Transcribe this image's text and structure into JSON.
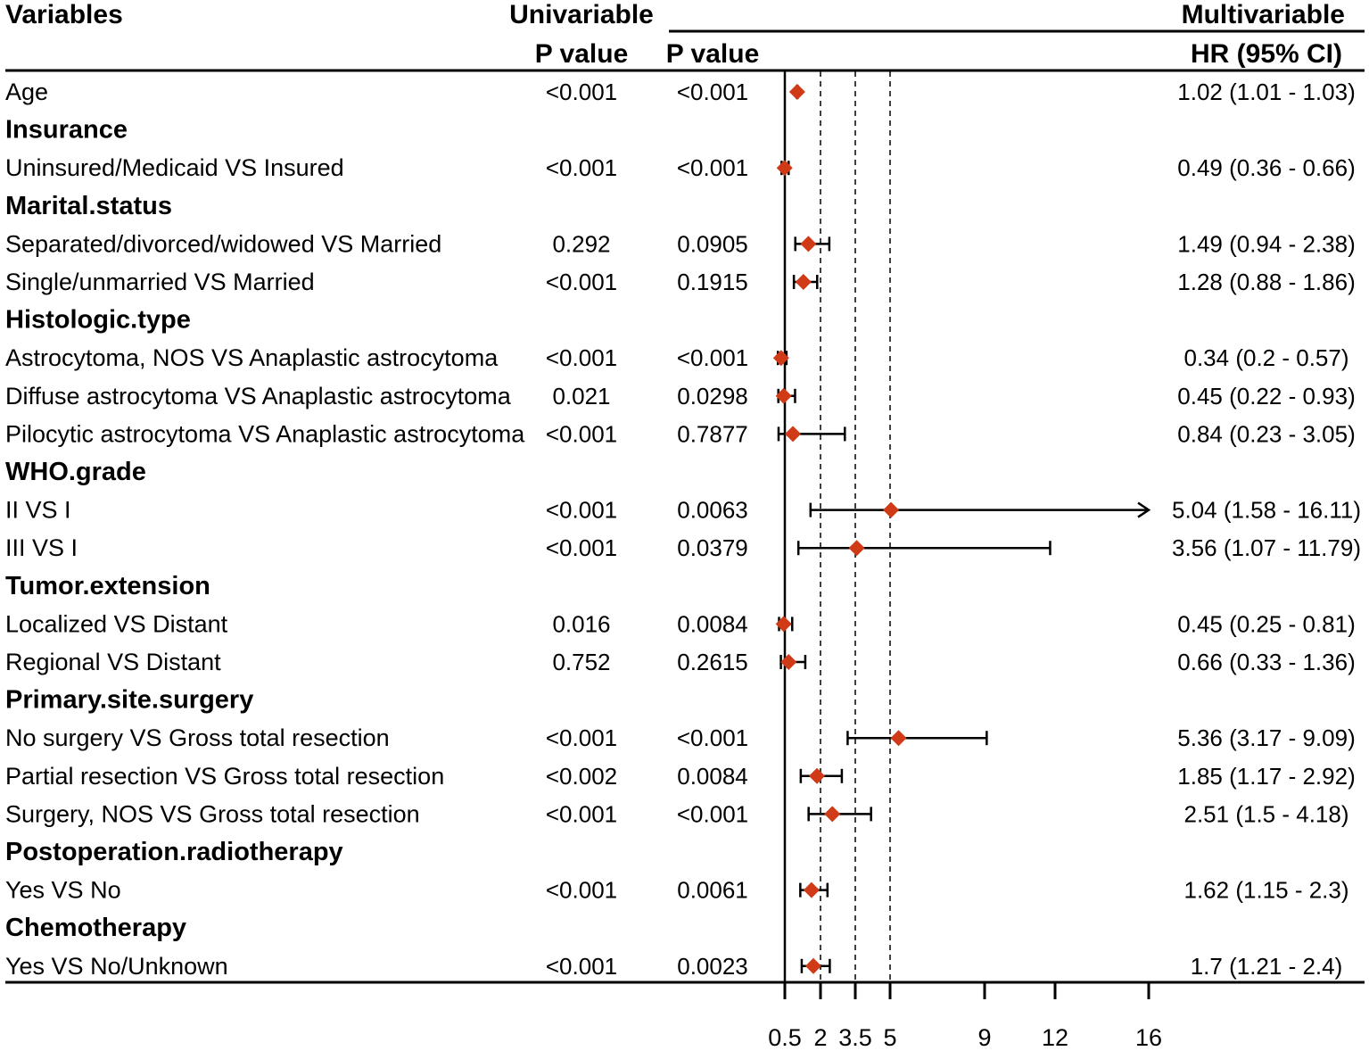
{
  "headers": {
    "variables": "Variables",
    "univariable": "Univariable",
    "multivariable": "Multivariable",
    "uni_p": "P value",
    "multi_p": "P value",
    "hr": "HR (95% CI)"
  },
  "colors": {
    "marker": "#d03a17",
    "line": "#000000"
  },
  "chart_data": {
    "type": "forest",
    "x_ticks": [
      0.5,
      2,
      3.5,
      5,
      9,
      12,
      16
    ],
    "x_tick_labels": [
      "0.5",
      "2",
      "3.5",
      "5",
      "9",
      "12",
      "16"
    ],
    "reference_lines": [
      2,
      3.5,
      5
    ],
    "null_line": 0.5,
    "xlim": [
      0.5,
      16
    ],
    "rows": [
      {
        "label": "Age",
        "group": false,
        "uni_p": "<0.001",
        "multi_p": "<0.001",
        "hr_text": "1.02 (1.01 - 1.03)",
        "hr": 1.02,
        "lo": 1.01,
        "hi": 1.03
      },
      {
        "label": "Insurance",
        "group": true
      },
      {
        "label": "Uninsured/Medicaid VS Insured",
        "group": false,
        "uni_p": "<0.001",
        "multi_p": "<0.001",
        "hr_text": "0.49 (0.36 - 0.66)",
        "hr": 0.49,
        "lo": 0.36,
        "hi": 0.66
      },
      {
        "label": "Marital.status",
        "group": true
      },
      {
        "label": "Separated/divorced/widowed VS Married",
        "group": false,
        "uni_p": "0.292",
        "multi_p": "0.0905",
        "hr_text": "1.49 (0.94 - 2.38)",
        "hr": 1.49,
        "lo": 0.94,
        "hi": 2.38
      },
      {
        "label": "Single/unmarried VS Married",
        "group": false,
        "uni_p": "<0.001",
        "multi_p": "0.1915",
        "hr_text": "1.28 (0.88 - 1.86)",
        "hr": 1.28,
        "lo": 0.88,
        "hi": 1.86
      },
      {
        "label": "Histologic.type",
        "group": true
      },
      {
        "label": "Astrocytoma, NOS VS Anaplastic astrocytoma",
        "group": false,
        "uni_p": "<0.001",
        "multi_p": "<0.001",
        "hr_text": "0.34 (0.2 - 0.57)",
        "hr": 0.34,
        "lo": 0.2,
        "hi": 0.57
      },
      {
        "label": "Diffuse astrocytoma  VS Anaplastic astrocytoma",
        "group": false,
        "uni_p": "0.021",
        "multi_p": "0.0298",
        "hr_text": "0.45 (0.22 - 0.93)",
        "hr": 0.45,
        "lo": 0.22,
        "hi": 0.93
      },
      {
        "label": "Pilocytic astrocytoma VS Anaplastic astrocytoma",
        "group": false,
        "uni_p": "<0.001",
        "multi_p": "0.7877",
        "hr_text": "0.84 (0.23 - 3.05)",
        "hr": 0.84,
        "lo": 0.23,
        "hi": 3.05
      },
      {
        "label": "WHO.grade",
        "group": true
      },
      {
        "label": "II VS I",
        "group": false,
        "uni_p": "<0.001",
        "multi_p": "0.0063",
        "hr_text": "5.04 (1.58 - 16.11)",
        "hr": 5.04,
        "lo": 1.58,
        "hi": 16.11
      },
      {
        "label": "III VS I",
        "group": false,
        "uni_p": "<0.001",
        "multi_p": "0.0379",
        "hr_text": "3.56 (1.07 - 11.79)",
        "hr": 3.56,
        "lo": 1.07,
        "hi": 11.79
      },
      {
        "label": "Tumor.extension",
        "group": true
      },
      {
        "label": "Localized VS Distant",
        "group": false,
        "uni_p": "0.016",
        "multi_p": "0.0084",
        "hr_text": "0.45 (0.25 - 0.81)",
        "hr": 0.45,
        "lo": 0.25,
        "hi": 0.81
      },
      {
        "label": "Regional VS Distant",
        "group": false,
        "uni_p": "0.752",
        "multi_p": "0.2615",
        "hr_text": "0.66 (0.33 - 1.36)",
        "hr": 0.66,
        "lo": 0.33,
        "hi": 1.36
      },
      {
        "label": "Primary.site.surgery",
        "group": true
      },
      {
        "label": "No surgery VS Gross total resection",
        "group": false,
        "uni_p": "<0.001",
        "multi_p": "<0.001",
        "hr_text": "5.36 (3.17 - 9.09)",
        "hr": 5.36,
        "lo": 3.17,
        "hi": 9.09
      },
      {
        "label": "Partial resection VS Gross total resection",
        "group": false,
        "uni_p": "<0.002",
        "multi_p": "0.0084",
        "hr_text": "1.85 (1.17 - 2.92)",
        "hr": 1.85,
        "lo": 1.17,
        "hi": 2.92
      },
      {
        "label": "Surgery, NOS VS Gross total resection",
        "group": false,
        "uni_p": "<0.001",
        "multi_p": "<0.001",
        "hr_text": "2.51 (1.5 - 4.18)",
        "hr": 2.51,
        "lo": 1.5,
        "hi": 4.18
      },
      {
        "label": "Postoperation.radiotherapy",
        "group": true
      },
      {
        "label": "Yes VS No",
        "group": false,
        "uni_p": "<0.001",
        "multi_p": "0.0061",
        "hr_text": "1.62 (1.15 - 2.3)",
        "hr": 1.62,
        "lo": 1.15,
        "hi": 2.3
      },
      {
        "label": "Chemotherapy",
        "group": true
      },
      {
        "label": "Yes VS No/Unknown",
        "group": false,
        "uni_p": "<0.001",
        "multi_p": "0.0023",
        "hr_text": "1.7 (1.21 - 2.4)",
        "hr": 1.7,
        "lo": 1.21,
        "hi": 2.4
      }
    ]
  }
}
